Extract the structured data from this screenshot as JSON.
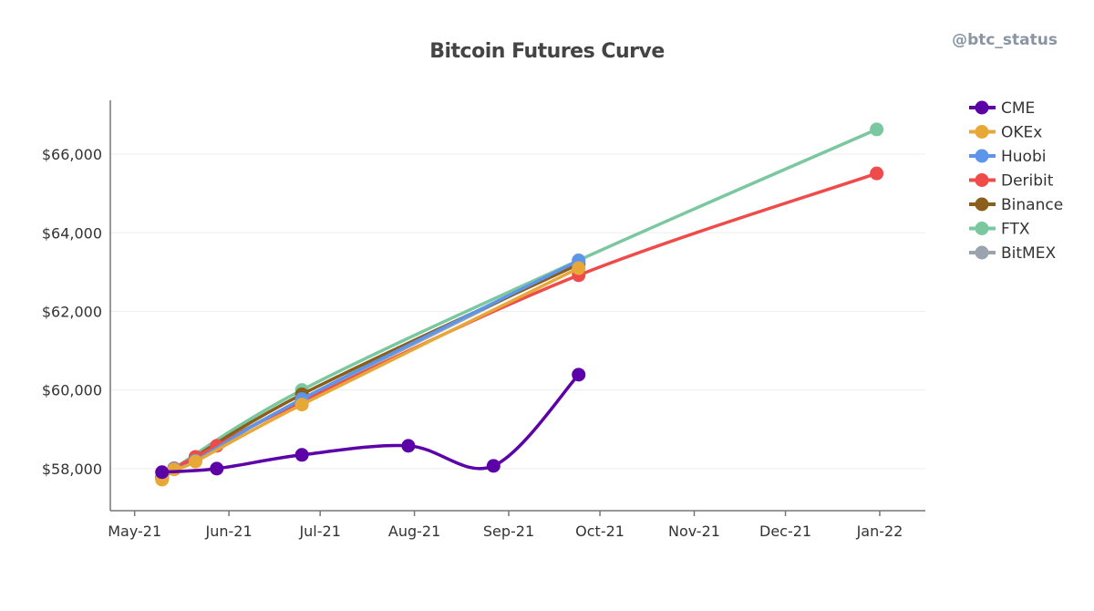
{
  "watermark": "@btc_status",
  "chart_data": {
    "type": "line",
    "title": "Bitcoin Futures Curve",
    "xlabel": "",
    "ylabel": "",
    "x_type": "date",
    "xlim": [
      "2021-04-23",
      "2022-01-16"
    ],
    "ylim": [
      56930,
      67370
    ],
    "x_ticks": [
      {
        "date": "2021-05-01",
        "label": "May-21"
      },
      {
        "date": "2021-06-01",
        "label": "Jun-21"
      },
      {
        "date": "2021-07-01",
        "label": "Jul-21"
      },
      {
        "date": "2021-08-01",
        "label": "Aug-21"
      },
      {
        "date": "2021-09-01",
        "label": "Sep-21"
      },
      {
        "date": "2021-10-01",
        "label": "Oct-21"
      },
      {
        "date": "2021-11-01",
        "label": "Nov-21"
      },
      {
        "date": "2021-12-01",
        "label": "Dec-21"
      },
      {
        "date": "2022-01-01",
        "label": "Jan-22"
      }
    ],
    "y_ticks": [
      {
        "value": 58000,
        "label": "$58,000"
      },
      {
        "value": 60000,
        "label": "$60,000"
      },
      {
        "value": 62000,
        "label": "$62,000"
      },
      {
        "value": 64000,
        "label": "$64,000"
      },
      {
        "value": 66000,
        "label": "$66,000"
      }
    ],
    "grid": "horizontal",
    "legend_placement": "right",
    "series": [
      {
        "name": "CME",
        "color": "#5c00a8",
        "points": [
          [
            "2021-05-10",
            57910
          ],
          [
            "2021-05-28",
            58000
          ],
          [
            "2021-06-25",
            58350
          ],
          [
            "2021-07-30",
            58580
          ],
          [
            "2021-08-27",
            58070
          ],
          [
            "2021-09-24",
            60390
          ]
        ]
      },
      {
        "name": "OKEx",
        "color": "#e8a838",
        "points": [
          [
            "2021-05-10",
            57720
          ],
          [
            "2021-05-14",
            57980
          ],
          [
            "2021-05-21",
            58180
          ],
          [
            "2021-06-25",
            59630
          ],
          [
            "2021-09-24",
            63100
          ]
        ]
      },
      {
        "name": "Huobi",
        "color": "#5d95ec",
        "points": [
          [
            "2021-05-10",
            57750
          ],
          [
            "2021-05-14",
            58000
          ],
          [
            "2021-05-21",
            58200
          ],
          [
            "2021-06-25",
            59770
          ],
          [
            "2021-09-24",
            63290
          ]
        ]
      },
      {
        "name": "Deribit",
        "color": "#f04b4b",
        "points": [
          [
            "2021-05-10",
            57780
          ],
          [
            "2021-05-14",
            58010
          ],
          [
            "2021-05-21",
            58300
          ],
          [
            "2021-05-28",
            58580
          ],
          [
            "2021-06-25",
            59700
          ],
          [
            "2021-09-24",
            62920
          ],
          [
            "2021-12-31",
            65510
          ]
        ]
      },
      {
        "name": "Binance",
        "color": "#8b5e1a",
        "points": [
          [
            "2021-05-10",
            57760
          ],
          [
            "2021-06-25",
            59890
          ],
          [
            "2021-09-24",
            63200
          ]
        ]
      },
      {
        "name": "FTX",
        "color": "#7bc8a0",
        "points": [
          [
            "2021-05-10",
            57800
          ],
          [
            "2021-06-25",
            60000
          ],
          [
            "2021-09-24",
            63300
          ],
          [
            "2021-12-31",
            66630
          ]
        ]
      },
      {
        "name": "BitMEX",
        "color": "#9aa4ae",
        "points": [
          [
            "2021-05-10",
            57760
          ],
          [
            "2021-05-14",
            58010
          ],
          [
            "2021-06-25",
            59750
          ],
          [
            "2021-09-24",
            63250
          ]
        ]
      }
    ]
  }
}
